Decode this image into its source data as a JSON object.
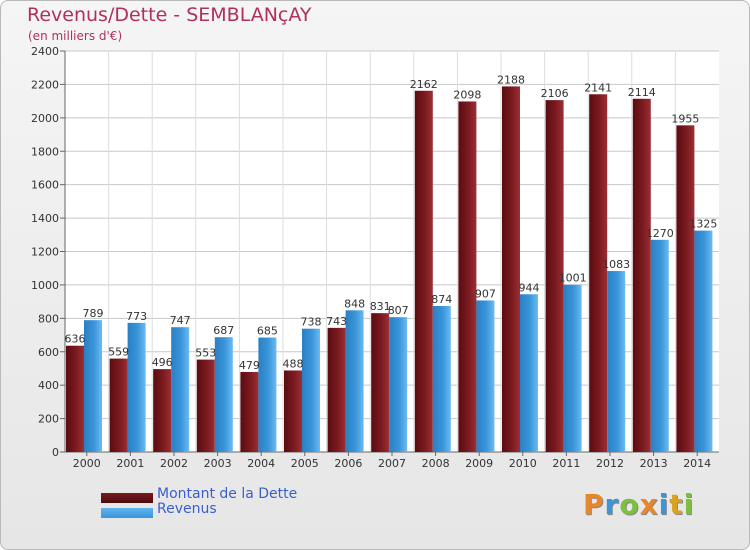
{
  "title": "Revenus/Dette - SEMBLANçAY",
  "subtitle": "(en milliers d'€)",
  "logo_text": "Proxiti",
  "colors": {
    "debt": "#7b1a1f",
    "revenue": "#3a95d9",
    "title": "#b0305a",
    "legend_text": "#3a5fcd"
  },
  "legend": {
    "debt_label": "Montant de la Dette",
    "revenue_label": "Revenus"
  },
  "chart_data": {
    "type": "bar",
    "categories": [
      "2000",
      "2001",
      "2002",
      "2003",
      "2004",
      "2005",
      "2006",
      "2007",
      "2008",
      "2009",
      "2010",
      "2011",
      "2012",
      "2013",
      "2014"
    ],
    "series": [
      {
        "name": "Montant de la Dette",
        "values": [
          636,
          559,
          496,
          553,
          479,
          488,
          743,
          831,
          2162,
          2098,
          2188,
          2106,
          2141,
          2114,
          1955
        ]
      },
      {
        "name": "Revenus",
        "values": [
          789,
          773,
          747,
          687,
          685,
          738,
          848,
          807,
          874,
          907,
          944,
          1001,
          1083,
          1270,
          1325
        ]
      }
    ],
    "y_ticks": [
      0,
      200,
      400,
      600,
      800,
      1000,
      1200,
      1400,
      1600,
      1800,
      2000,
      2200,
      2400
    ],
    "ylim": [
      0,
      2400
    ],
    "grid": true,
    "legend_position": "bottom-left"
  }
}
